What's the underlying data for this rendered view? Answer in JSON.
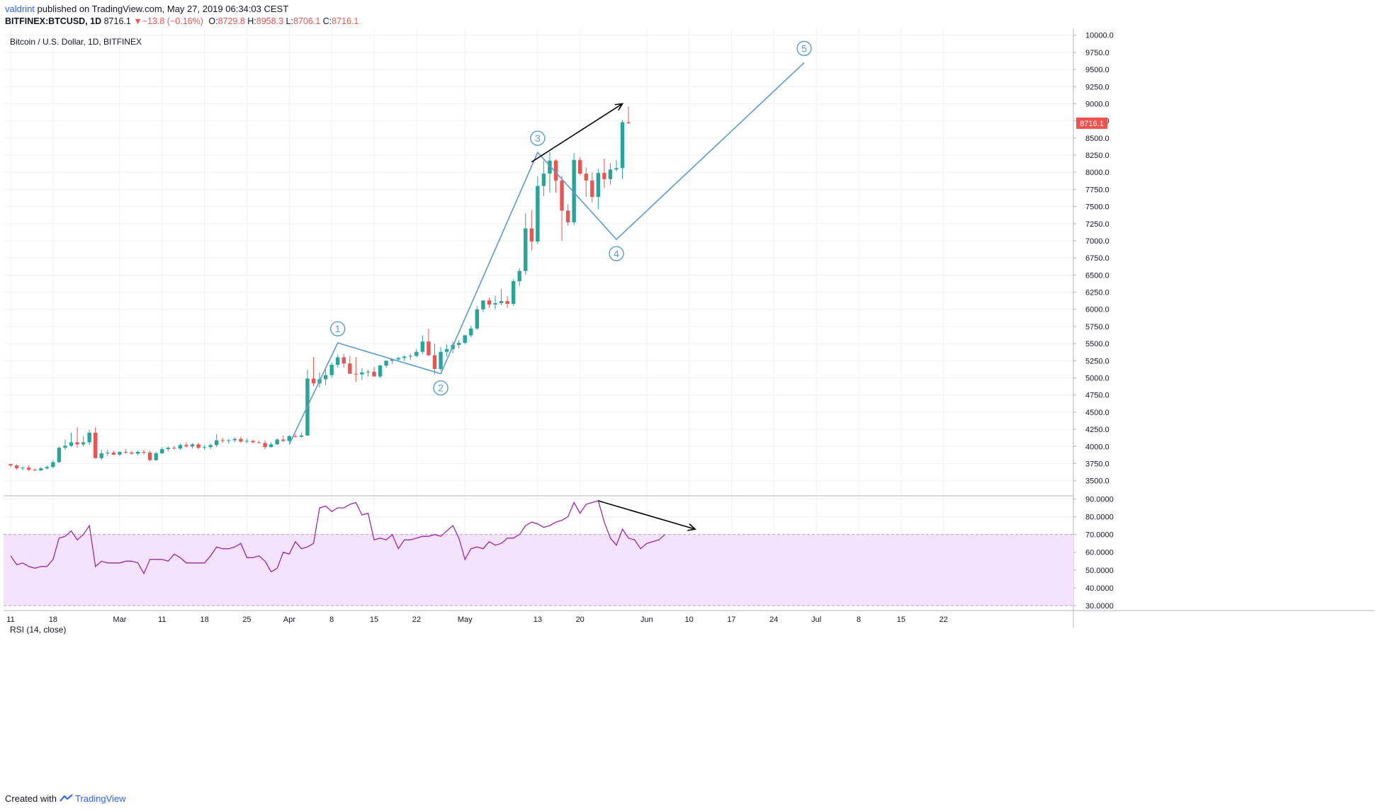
{
  "header": {
    "author": "valdrint",
    "published_text": "published on TradingView.com, May 27, 2019 06:34:03 CEST"
  },
  "symbol_bar": {
    "symbol": "BITFINEX:BTCUSD, 1D",
    "last": "8716.1",
    "change_arrow": "▼",
    "change": "−13.8 (−0.16%)",
    "o_label": "O:",
    "o_value": "8729.8",
    "h_label": "H:",
    "h_value": "8958.3",
    "l_label": "L:",
    "l_value": "8706.1",
    "c_label": "C:",
    "c_value": "8716.1"
  },
  "footer": {
    "created_with": "Created with",
    "brand": "TradingView"
  },
  "colors": {
    "up": "#26a69a",
    "down": "#ef5350",
    "wave": "#5b9bd5",
    "rsi": "#9c27b0",
    "rsi_band": "#f3e3fd",
    "grid": "#eef1f5",
    "arrow": "#000000"
  },
  "chart_data": [
    {
      "type": "candlestick",
      "title": "Bitcoin / U.S. Dollar, 1D, BITFINEX",
      "ylim": [
        3300,
        10100
      ],
      "y_ticks": [
        "3500.0",
        "3750.0",
        "4000.0",
        "4250.0",
        "4500.0",
        "4750.0",
        "5000.0",
        "5250.0",
        "5500.0",
        "5750.0",
        "6000.0",
        "6250.0",
        "6500.0",
        "6750.0",
        "7000.0",
        "7250.0",
        "7500.0",
        "7750.0",
        "8000.0",
        "8250.0",
        "8500.0",
        "8750.0",
        "9000.0",
        "9250.0",
        "9500.0",
        "9750.0",
        "10000.0"
      ],
      "y_tick_values": [
        3500,
        3750,
        4000,
        4250,
        4500,
        4750,
        5000,
        5250,
        5500,
        5750,
        6000,
        6250,
        6500,
        6750,
        7000,
        7250,
        7500,
        7750,
        8000,
        8250,
        8500,
        8750,
        9000,
        9250,
        9500,
        9750,
        10000
      ],
      "x_tick_labels": [
        "11",
        "18",
        "Mar",
        "11",
        "18",
        "25",
        "Apr",
        "8",
        "15",
        "22",
        "May",
        "13",
        "20",
        "Jun",
        "10",
        "17",
        "24",
        "Jul",
        "8",
        "15",
        "22"
      ],
      "x_tick_days": [
        0,
        7,
        18,
        25,
        32,
        39,
        46,
        53,
        60,
        67,
        75,
        87,
        94,
        105,
        112,
        119,
        126,
        133,
        140,
        147,
        154
      ],
      "last_price_label": "8716.1",
      "candles": [
        [
          3742,
          3745,
          3700,
          3722
        ],
        [
          3722,
          3740,
          3660,
          3680
        ],
        [
          3680,
          3710,
          3650,
          3690
        ],
        [
          3690,
          3720,
          3640,
          3660
        ],
        [
          3660,
          3680,
          3640,
          3650
        ],
        [
          3650,
          3700,
          3640,
          3680
        ],
        [
          3680,
          3720,
          3660,
          3700
        ],
        [
          3700,
          3800,
          3680,
          3770
        ],
        [
          3770,
          4000,
          3760,
          3980
        ],
        [
          3980,
          4100,
          3950,
          4010
        ],
        [
          4010,
          4200,
          3990,
          4060
        ],
        [
          4060,
          4280,
          3980,
          4030
        ],
        [
          4030,
          4150,
          4000,
          4060
        ],
        [
          4060,
          4240,
          4020,
          4200
        ],
        [
          4200,
          4280,
          3820,
          3830
        ],
        [
          3830,
          3950,
          3800,
          3900
        ],
        [
          3900,
          3950,
          3860,
          3910
        ],
        [
          3910,
          3940,
          3870,
          3880
        ],
        [
          3880,
          3930,
          3860,
          3920
        ],
        [
          3920,
          3960,
          3890,
          3910
        ],
        [
          3910,
          3940,
          3880,
          3895
        ],
        [
          3895,
          3940,
          3870,
          3920
        ],
        [
          3920,
          3950,
          3880,
          3910
        ],
        [
          3910,
          3940,
          3780,
          3800
        ],
        [
          3800,
          3920,
          3790,
          3900
        ],
        [
          3900,
          3990,
          3890,
          3960
        ],
        [
          3960,
          4000,
          3930,
          3980
        ],
        [
          3980,
          4010,
          3950,
          3970
        ],
        [
          3970,
          4040,
          3950,
          4020
        ],
        [
          4020,
          4060,
          3980,
          4000
        ],
        [
          4000,
          4050,
          3970,
          4030
        ],
        [
          4030,
          4050,
          3960,
          3980
        ],
        [
          3980,
          4020,
          3950,
          3990
        ],
        [
          3990,
          4040,
          3960,
          4020
        ],
        [
          4020,
          4180,
          3990,
          4090
        ],
        [
          4090,
          4120,
          4050,
          4080
        ],
        [
          4080,
          4110,
          4040,
          4090
        ],
        [
          4090,
          4130,
          4060,
          4110
        ],
        [
          4110,
          4140,
          4050,
          4070
        ],
        [
          4070,
          4110,
          4050,
          4080
        ],
        [
          4080,
          4100,
          4040,
          4060
        ],
        [
          4060,
          4080,
          4040,
          4050
        ],
        [
          4050,
          4090,
          3960,
          3990
        ],
        [
          3990,
          4060,
          3980,
          4030
        ],
        [
          4030,
          4120,
          4020,
          4100
        ],
        [
          4100,
          4160,
          4060,
          4080
        ],
        [
          4080,
          4170,
          4060,
          4150
        ],
        [
          4150,
          4180,
          4130,
          4140
        ],
        [
          4140,
          4200,
          4130,
          4160
        ],
        [
          4160,
          5120,
          4150,
          4990
        ],
        [
          4990,
          5300,
          4880,
          4920
        ],
        [
          4920,
          5080,
          4860,
          4980
        ],
        [
          4980,
          5120,
          4890,
          5040
        ],
        [
          5040,
          5220,
          5000,
          5190
        ],
        [
          5190,
          5340,
          5150,
          5300
        ],
        [
          5300,
          5350,
          5150,
          5210
        ],
        [
          5210,
          5320,
          5100,
          5060
        ],
        [
          5060,
          5300,
          4940,
          5050
        ],
        [
          5050,
          5140,
          4970,
          5080
        ],
        [
          5080,
          5120,
          5020,
          5090
        ],
        [
          5090,
          5160,
          5020,
          5020
        ],
        [
          5020,
          5190,
          5000,
          5180
        ],
        [
          5180,
          5240,
          5150,
          5250
        ],
        [
          5250,
          5280,
          5200,
          5270
        ],
        [
          5270,
          5310,
          5240,
          5290
        ],
        [
          5290,
          5330,
          5250,
          5310
        ],
        [
          5310,
          5350,
          5260,
          5320
        ],
        [
          5320,
          5420,
          5300,
          5380
        ],
        [
          5380,
          5620,
          5350,
          5530
        ],
        [
          5530,
          5720,
          5320,
          5330
        ],
        [
          5330,
          5500,
          5050,
          5130
        ],
        [
          5130,
          5450,
          5100,
          5380
        ],
        [
          5380,
          5490,
          5310,
          5420
        ],
        [
          5420,
          5530,
          5360,
          5480
        ],
        [
          5480,
          5550,
          5430,
          5510
        ],
        [
          5510,
          5630,
          5490,
          5620
        ],
        [
          5620,
          5760,
          5590,
          5720
        ],
        [
          5720,
          6050,
          5700,
          6000
        ],
        [
          6000,
          6130,
          5960,
          6130
        ],
        [
          6130,
          6170,
          6020,
          6070
        ],
        [
          6070,
          6200,
          6000,
          6090
        ],
        [
          6090,
          6300,
          6060,
          6120
        ],
        [
          6120,
          6190,
          6020,
          6080
        ],
        [
          6080,
          6440,
          6050,
          6410
        ],
        [
          6410,
          6600,
          6340,
          6560
        ],
        [
          6560,
          7400,
          6500,
          7180
        ],
        [
          7180,
          7450,
          6860,
          6990
        ],
        [
          6990,
          7940,
          6950,
          7800
        ],
        [
          7800,
          8170,
          7650,
          7980
        ],
        [
          7980,
          8300,
          7700,
          8170
        ],
        [
          8170,
          8190,
          7700,
          7880
        ],
        [
          7880,
          7950,
          7000,
          7440
        ],
        [
          7440,
          7530,
          7220,
          7270
        ],
        [
          7270,
          8280,
          7230,
          8180
        ],
        [
          8180,
          8220,
          7960,
          7980
        ],
        [
          7980,
          8070,
          7640,
          7880
        ],
        [
          7880,
          8000,
          7560,
          7640
        ],
        [
          7640,
          8050,
          7460,
          7990
        ],
        [
          7990,
          8200,
          7770,
          7900
        ],
        [
          7900,
          8130,
          7820,
          8040
        ],
        [
          8040,
          8180,
          8010,
          8060
        ],
        [
          8060,
          8760,
          7900,
          8730
        ],
        [
          8729.8,
          8958.3,
          8706.1,
          8716.1
        ]
      ],
      "annotations": {
        "elliott_wave": {
          "labels": [
            "1",
            "2",
            "3",
            "4",
            "5"
          ],
          "points": [
            [
              46,
              4030
            ],
            [
              54,
              5510
            ],
            [
              71,
              5060
            ],
            [
              87,
              8290
            ],
            [
              100,
              7020
            ],
            [
              131,
              9600
            ]
          ]
        },
        "trend_arrow": [
          [
            86,
            8150
          ],
          [
            101,
            9000
          ]
        ]
      }
    },
    {
      "type": "line",
      "title": "RSI (14, close)",
      "ylim": [
        28,
        91
      ],
      "y_ticks": [
        "30.0000",
        "40.0000",
        "50.0000",
        "60.0000",
        "70.0000",
        "80.0000",
        "90.0000"
      ],
      "y_tick_values": [
        30,
        40,
        50,
        60,
        70,
        80,
        90
      ],
      "overbought": 70,
      "oversold": 30,
      "values": [
        58,
        53,
        54,
        52,
        51,
        52,
        52,
        56,
        68,
        69,
        72,
        67,
        70,
        75,
        52,
        55,
        54,
        54,
        54,
        55,
        55,
        54,
        48,
        56,
        56,
        56,
        55,
        59,
        57,
        54,
        54,
        54,
        54,
        58,
        63,
        62,
        62,
        63,
        65,
        57,
        57,
        58,
        55,
        49,
        51,
        60,
        59,
        66,
        62,
        63,
        65,
        85,
        86,
        83,
        85,
        85,
        87,
        88,
        81,
        82,
        67,
        68,
        67,
        70,
        62,
        67,
        67,
        68,
        69,
        69,
        70,
        69,
        72,
        75,
        68,
        56,
        62,
        63,
        62,
        66,
        64,
        65,
        68,
        68,
        70,
        75,
        77,
        76,
        74,
        75,
        77,
        78,
        80,
        88,
        82,
        87,
        88,
        89,
        77,
        68,
        64,
        73,
        68,
        67,
        62,
        65,
        66,
        67,
        70
      ]
    }
  ]
}
